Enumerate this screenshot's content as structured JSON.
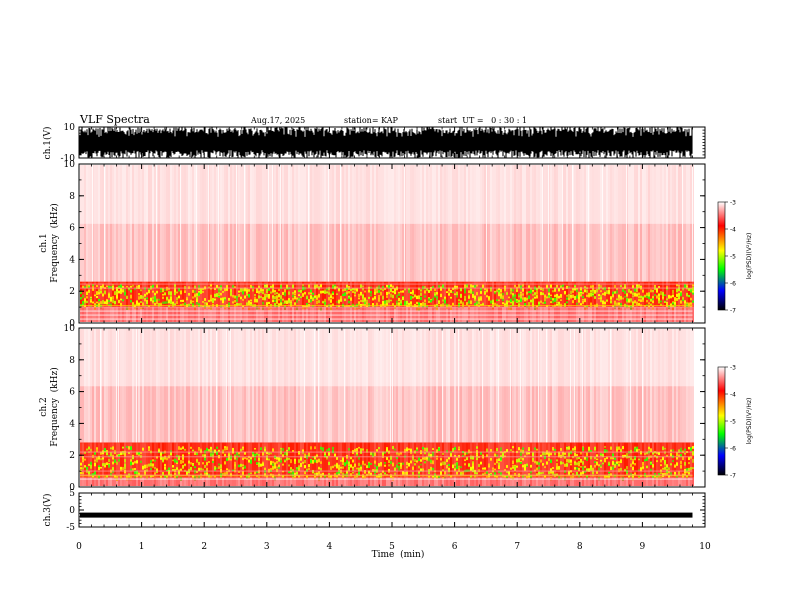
{
  "header": {
    "title": "VLF Spectra",
    "date": "Aug.17, 2025",
    "station": "station= KAP",
    "start": "start  UT =   0 : 30 : 1"
  },
  "chart_data": [
    {
      "type": "line",
      "panel": "ch1-waveform",
      "ylabel": "ch.1(V)",
      "ylim": [
        -10,
        10
      ],
      "yticks": [
        "10",
        "-10"
      ],
      "xlim": [
        0,
        10
      ]
    },
    {
      "type": "heatmap",
      "panel": "ch1-spectrogram",
      "ylabel_line1": "ch.1",
      "ylabel_line2": "Frequency  (kHz)",
      "ylim": [
        0,
        10
      ],
      "yticks": [
        "0",
        "2",
        "4",
        "6",
        "8",
        "10"
      ],
      "xlim": [
        0,
        10
      ],
      "data_extent_min": 9.8,
      "noise_band_khz": [
        1.0,
        2.6
      ],
      "harmonic_lines_khz": [
        0.25,
        0.5,
        0.75,
        1.0,
        2.2,
        2.45
      ]
    },
    {
      "type": "heatmap",
      "panel": "ch2-spectrogram",
      "ylabel_line1": "ch.2",
      "ylabel_line2": "Frequency  (kHz)",
      "ylim": [
        0,
        10
      ],
      "yticks": [
        "0",
        "2",
        "4",
        "6",
        "8",
        "10"
      ],
      "xlim": [
        0,
        10
      ],
      "data_extent_min": 9.8,
      "noise_band_khz": [
        0.6,
        2.8
      ],
      "harmonic_lines_khz": [
        0.5,
        0.75,
        1.0,
        1.9,
        2.2
      ]
    },
    {
      "type": "line",
      "panel": "ch3-waveform",
      "ylabel": "ch.3(V)",
      "ylim": [
        -5,
        5
      ],
      "yticks": [
        "5",
        "0",
        "-5"
      ],
      "xlim": [
        0,
        10
      ],
      "xlabel": "Time  (min)",
      "xticks": [
        "0",
        "1",
        "2",
        "3",
        "4",
        "5",
        "6",
        "7",
        "8",
        "9",
        "10"
      ],
      "baseline_v": -1.5
    }
  ],
  "colorbar": {
    "label": "log(PSD)(V²/Hz)",
    "range": [
      -7,
      -3
    ],
    "ticks": [
      "-3",
      "-4",
      "-5",
      "-6",
      "-7"
    ],
    "colors": [
      "#ffffff",
      "#ff0000",
      "#ffff00",
      "#00ff00",
      "#0000ff",
      "#000000"
    ]
  }
}
